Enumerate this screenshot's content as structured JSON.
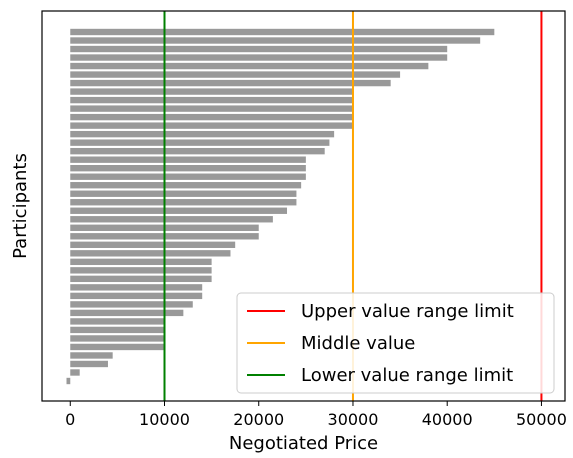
{
  "chart_data": {
    "type": "bar",
    "orientation": "horizontal",
    "xlabel": "Negotiated Price",
    "ylabel": "Participants",
    "xlim": [
      -3000,
      52500
    ],
    "xticks": [
      0,
      10000,
      20000,
      30000,
      40000,
      50000
    ],
    "xtick_labels": [
      "0",
      "10000",
      "20000",
      "30000",
      "40000",
      "50000"
    ],
    "bar_color": "#999999",
    "values": [
      -400,
      1000,
      4000,
      4500,
      10000,
      10000,
      10000,
      10000,
      12000,
      13000,
      14000,
      14000,
      15000,
      15000,
      15000,
      17000,
      17500,
      20000,
      20000,
      21500,
      23000,
      24000,
      24000,
      24500,
      25000,
      25000,
      25000,
      27000,
      27500,
      28000,
      30000,
      30000,
      30000,
      30000,
      30000,
      34000,
      35000,
      38000,
      40000,
      40000,
      43500,
      45000
    ],
    "reference_lines": [
      {
        "name": "Upper value range limit",
        "value": 50000,
        "color": "#ff0000"
      },
      {
        "name": "Middle value",
        "value": 30000,
        "color": "#ffa500"
      },
      {
        "name": "Lower value range limit",
        "value": 10000,
        "color": "#008000"
      }
    ],
    "legend_position": "bottom-right",
    "grid": false
  }
}
